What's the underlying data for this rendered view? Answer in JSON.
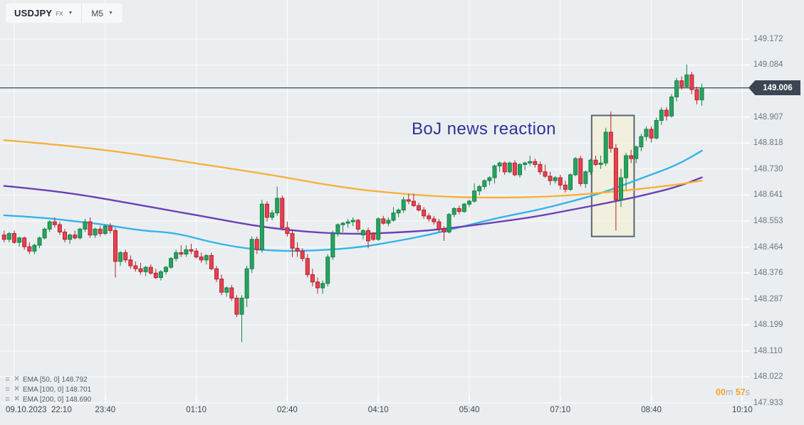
{
  "toolbar": {
    "symbol": "USDJPY",
    "market": "FX",
    "timeframe": "M5"
  },
  "annotation": {
    "text": "BoJ news reaction",
    "color": "#2e3695"
  },
  "indicators": [
    {
      "name": "EMA",
      "params": "[50, 0]",
      "value": "148.792",
      "color": "#35b3ea",
      "settings_icon": "settings-icon",
      "remove_icon": "close-icon"
    },
    {
      "name": "EMA",
      "params": "[100, 0]",
      "value": "148.701",
      "color": "#6b40b8",
      "settings_icon": "settings-icon",
      "remove_icon": "close-icon"
    },
    {
      "name": "EMA",
      "params": "[200, 0]",
      "value": "148.690",
      "color": "#f7b13c",
      "settings_icon": "settings-icon",
      "remove_icon": "close-icon"
    }
  ],
  "countdown": {
    "minutes": "00",
    "unit_m": "m",
    "seconds": "57",
    "unit_s": "s"
  },
  "price_axis": {
    "current_price": "149.006",
    "labels": [
      "149.172",
      "149.084",
      "148.907",
      "148.818",
      "148.730",
      "148.641",
      "148.553",
      "148.464",
      "148.376",
      "148.287",
      "148.199",
      "148.110",
      "148.022",
      "147.933"
    ]
  },
  "time_axis": {
    "ticks": [
      {
        "label": "09.10.2023  22:10",
        "index": 2,
        "anchor": "left"
      },
      {
        "label": "23:40",
        "index": 20
      },
      {
        "label": "01:10",
        "index": 38
      },
      {
        "label": "02:40",
        "index": 56
      },
      {
        "label": "04:10",
        "index": 74
      },
      {
        "label": "05:40",
        "index": 92
      },
      {
        "label": "07:10",
        "index": 110
      },
      {
        "label": "08:40",
        "index": 128
      },
      {
        "label": "10:10",
        "index": 146
      }
    ]
  },
  "chart_data": {
    "type": "candlestick",
    "title": "USDJPY M5",
    "symbol": "USDJPY",
    "timeframe": "M5",
    "interval_minutes": 5,
    "first_candle_time": "09.10.2023 22:00",
    "ylim": [
      147.933,
      149.172
    ],
    "y_tick_step": 0.0885,
    "grid": true,
    "current_price": 149.006,
    "colors": {
      "up_fill": "#27a45f",
      "up_stroke": "#15804a",
      "down_fill": "#ed3f4f",
      "down_stroke": "#ab2531",
      "background": "#ebeef0",
      "gridline": "#ffffff",
      "price_line": "#3c4653",
      "box_fill": "rgba(245,240,205,0.55)",
      "box_stroke": "#5b6673"
    },
    "candles": [
      [
        148.505,
        148.52,
        148.48,
        148.49
      ],
      [
        148.49,
        148.515,
        148.48,
        148.51
      ],
      [
        148.51,
        148.52,
        148.475,
        148.48
      ],
      [
        148.48,
        148.5,
        148.465,
        148.495
      ],
      [
        148.495,
        148.5,
        148.455,
        148.465
      ],
      [
        148.465,
        148.48,
        148.44,
        148.45
      ],
      [
        148.45,
        148.475,
        148.44,
        148.47
      ],
      [
        148.47,
        148.5,
        148.46,
        148.495
      ],
      [
        148.495,
        148.53,
        148.49,
        148.525
      ],
      [
        148.525,
        148.555,
        148.515,
        148.55
      ],
      [
        148.55,
        148.565,
        148.53,
        148.54
      ],
      [
        148.54,
        148.55,
        148.505,
        148.515
      ],
      [
        148.515,
        148.525,
        148.48,
        148.49
      ],
      [
        148.49,
        148.51,
        148.475,
        148.505
      ],
      [
        148.505,
        148.52,
        148.49,
        148.495
      ],
      [
        148.495,
        148.53,
        148.49,
        148.525
      ],
      [
        148.525,
        148.56,
        148.515,
        148.55
      ],
      [
        148.55,
        148.565,
        148.495,
        148.505
      ],
      [
        148.505,
        148.53,
        148.495,
        148.525
      ],
      [
        148.525,
        148.535,
        148.5,
        148.51
      ],
      [
        148.51,
        148.54,
        148.505,
        148.535
      ],
      [
        148.535,
        148.545,
        148.51,
        148.52
      ],
      [
        148.52,
        148.53,
        148.36,
        148.415
      ],
      [
        148.415,
        148.45,
        148.4,
        148.445
      ],
      [
        148.445,
        148.455,
        148.41,
        148.42
      ],
      [
        148.42,
        148.435,
        148.39,
        148.4
      ],
      [
        148.4,
        148.415,
        148.38,
        148.39
      ],
      [
        148.39,
        148.41,
        148.37,
        148.38
      ],
      [
        148.38,
        148.4,
        148.365,
        148.395
      ],
      [
        148.395,
        148.405,
        148.37,
        148.375
      ],
      [
        148.375,
        148.39,
        148.355,
        148.36
      ],
      [
        148.36,
        148.385,
        148.35,
        148.38
      ],
      [
        148.38,
        148.4,
        148.37,
        148.395
      ],
      [
        148.395,
        148.43,
        148.39,
        148.425
      ],
      [
        148.425,
        148.455,
        148.415,
        148.445
      ],
      [
        148.445,
        148.47,
        148.43,
        148.44
      ],
      [
        148.44,
        148.47,
        148.43,
        148.455
      ],
      [
        148.455,
        148.475,
        148.44,
        148.45
      ],
      [
        148.45,
        148.46,
        148.425,
        148.43
      ],
      [
        148.43,
        148.445,
        148.41,
        148.42
      ],
      [
        148.42,
        148.44,
        148.405,
        148.435
      ],
      [
        148.435,
        148.445,
        148.385,
        148.39
      ],
      [
        148.39,
        148.4,
        148.345,
        148.355
      ],
      [
        148.355,
        148.37,
        148.3,
        148.31
      ],
      [
        148.31,
        148.33,
        148.295,
        148.325
      ],
      [
        148.325,
        148.335,
        148.28,
        148.29
      ],
      [
        148.29,
        148.3,
        148.225,
        148.235
      ],
      [
        148.235,
        148.3,
        148.14,
        148.29
      ],
      [
        148.29,
        148.4,
        148.26,
        148.39
      ],
      [
        148.39,
        148.5,
        148.375,
        148.49
      ],
      [
        148.49,
        148.5,
        148.44,
        148.455
      ],
      [
        148.455,
        148.625,
        148.445,
        148.61
      ],
      [
        148.61,
        148.62,
        148.55,
        148.565
      ],
      [
        148.565,
        148.59,
        148.555,
        148.58
      ],
      [
        148.58,
        148.67,
        148.57,
        148.63
      ],
      [
        148.63,
        148.64,
        148.52,
        148.53
      ],
      [
        148.53,
        148.55,
        148.5,
        148.51
      ],
      [
        148.51,
        148.52,
        148.43,
        148.46
      ],
      [
        148.46,
        148.48,
        148.43,
        148.45
      ],
      [
        148.45,
        148.46,
        148.415,
        148.425
      ],
      [
        148.425,
        148.44,
        148.36,
        148.37
      ],
      [
        148.37,
        148.39,
        148.33,
        148.345
      ],
      [
        148.345,
        148.36,
        148.305,
        148.325
      ],
      [
        148.325,
        148.35,
        148.305,
        148.34
      ],
      [
        148.34,
        148.44,
        148.33,
        148.43
      ],
      [
        148.43,
        148.52,
        148.42,
        148.51
      ],
      [
        148.51,
        148.545,
        148.5,
        148.54
      ],
      [
        148.54,
        148.55,
        148.515,
        148.545
      ],
      [
        148.545,
        148.56,
        148.53,
        148.55
      ],
      [
        148.55,
        148.565,
        148.535,
        148.555
      ],
      [
        148.555,
        148.56,
        148.515,
        148.525
      ],
      [
        148.505,
        148.525,
        148.49,
        148.52
      ],
      [
        148.52,
        148.53,
        148.46,
        148.485
      ],
      [
        148.51,
        148.515,
        148.485,
        148.49
      ],
      [
        148.49,
        148.565,
        148.485,
        148.56
      ],
      [
        148.56,
        148.57,
        148.54,
        148.545
      ],
      [
        148.545,
        148.565,
        148.535,
        148.555
      ],
      [
        148.555,
        148.6,
        148.55,
        148.58
      ],
      [
        148.58,
        148.595,
        148.565,
        148.59
      ],
      [
        148.59,
        148.635,
        148.58,
        148.625
      ],
      [
        148.625,
        148.645,
        148.61,
        148.62
      ],
      [
        148.62,
        148.645,
        148.6,
        148.605
      ],
      [
        148.605,
        148.615,
        148.585,
        148.59
      ],
      [
        148.59,
        148.6,
        148.56,
        148.57
      ],
      [
        148.57,
        148.58,
        148.55,
        148.56
      ],
      [
        148.56,
        148.57,
        148.54,
        148.55
      ],
      [
        148.55,
        148.56,
        148.515,
        148.525
      ],
      [
        148.525,
        148.535,
        148.485,
        148.515
      ],
      [
        148.515,
        148.58,
        148.51,
        148.575
      ],
      [
        148.575,
        148.6,
        148.565,
        148.595
      ],
      [
        148.595,
        148.605,
        148.575,
        148.585
      ],
      [
        148.585,
        148.615,
        148.58,
        148.61
      ],
      [
        148.61,
        148.625,
        148.6,
        148.62
      ],
      [
        148.62,
        148.68,
        148.615,
        148.655
      ],
      [
        148.655,
        148.675,
        148.64,
        148.67
      ],
      [
        148.67,
        148.695,
        148.66,
        148.69
      ],
      [
        148.69,
        148.705,
        148.675,
        148.7
      ],
      [
        148.7,
        148.745,
        148.68,
        148.74
      ],
      [
        148.74,
        148.755,
        148.72,
        148.75
      ],
      [
        148.75,
        148.755,
        148.71,
        148.72
      ],
      [
        148.72,
        148.755,
        148.715,
        148.75
      ],
      [
        148.75,
        148.76,
        148.705,
        148.71
      ],
      [
        148.71,
        148.75,
        148.7,
        148.745
      ],
      [
        148.745,
        148.755,
        148.725,
        148.75
      ],
      [
        148.75,
        148.775,
        148.74,
        148.755
      ],
      [
        148.755,
        148.765,
        148.735,
        148.745
      ],
      [
        148.745,
        148.755,
        148.71,
        148.72
      ],
      [
        148.72,
        148.745,
        148.7,
        148.705
      ],
      [
        148.705,
        148.72,
        148.675,
        148.69
      ],
      [
        148.69,
        148.705,
        148.68,
        148.7
      ],
      [
        148.7,
        148.71,
        148.66,
        148.675
      ],
      [
        148.675,
        148.69,
        148.65,
        148.66
      ],
      [
        148.66,
        148.715,
        148.655,
        148.71
      ],
      [
        148.71,
        148.77,
        148.705,
        148.765
      ],
      [
        148.765,
        148.775,
        148.67,
        148.68
      ],
      [
        148.68,
        148.725,
        148.665,
        148.72
      ],
      [
        148.72,
        148.765,
        148.71,
        148.76
      ],
      [
        148.76,
        148.775,
        148.74,
        148.745
      ],
      [
        148.745,
        148.775,
        148.73,
        148.75
      ],
      [
        148.75,
        148.87,
        148.74,
        148.855
      ],
      [
        148.855,
        148.925,
        148.785,
        148.8
      ],
      [
        148.8,
        148.815,
        148.52,
        148.625
      ],
      [
        148.625,
        148.73,
        148.6,
        148.7
      ],
      [
        148.7,
        148.785,
        148.66,
        148.775
      ],
      [
        148.775,
        148.795,
        148.75,
        148.765
      ],
      [
        148.765,
        148.81,
        148.75,
        148.805
      ],
      [
        148.805,
        148.85,
        148.79,
        148.84
      ],
      [
        148.84,
        148.875,
        148.825,
        148.865
      ],
      [
        148.865,
        148.875,
        148.82,
        148.835
      ],
      [
        148.835,
        148.905,
        148.83,
        148.895
      ],
      [
        148.895,
        148.94,
        148.88,
        148.93
      ],
      [
        148.93,
        148.94,
        148.895,
        148.91
      ],
      [
        148.91,
        148.985,
        148.905,
        148.975
      ],
      [
        148.975,
        149.04,
        148.96,
        149.03
      ],
      [
        149.03,
        149.045,
        149.0,
        149.01
      ],
      [
        149.01,
        149.085,
        149.005,
        149.05
      ],
      [
        149.05,
        149.06,
        148.985,
        149.0
      ],
      [
        149.0,
        149.01,
        148.95,
        148.965
      ],
      [
        148.965,
        149.02,
        148.945,
        149.006
      ]
    ],
    "emas": [
      {
        "period": 50,
        "color": "#35b3ea",
        "final_value": 148.792,
        "points": [
          [
            0,
            148.572
          ],
          [
            7,
            148.565
          ],
          [
            14,
            148.552
          ],
          [
            20,
            148.54
          ],
          [
            27,
            148.52
          ],
          [
            34,
            148.512
          ],
          [
            41,
            148.48
          ],
          [
            48,
            148.458
          ],
          [
            55,
            148.45
          ],
          [
            62,
            148.452
          ],
          [
            70,
            148.462
          ],
          [
            77,
            148.482
          ],
          [
            84,
            148.505
          ],
          [
            91,
            148.535
          ],
          [
            98,
            148.565
          ],
          [
            105,
            148.588
          ],
          [
            112,
            148.618
          ],
          [
            119,
            148.652
          ],
          [
            126,
            148.698
          ],
          [
            133,
            148.742
          ],
          [
            138,
            148.792
          ]
        ]
      },
      {
        "period": 100,
        "color": "#6b40b8",
        "final_value": 148.701,
        "points": [
          [
            0,
            148.672
          ],
          [
            7,
            148.66
          ],
          [
            14,
            148.645
          ],
          [
            21,
            148.625
          ],
          [
            28,
            148.603
          ],
          [
            35,
            148.582
          ],
          [
            42,
            148.56
          ],
          [
            49,
            148.538
          ],
          [
            56,
            148.522
          ],
          [
            63,
            148.512
          ],
          [
            70,
            148.508
          ],
          [
            77,
            148.513
          ],
          [
            84,
            148.52
          ],
          [
            91,
            148.534
          ],
          [
            98,
            148.55
          ],
          [
            105,
            148.567
          ],
          [
            112,
            148.59
          ],
          [
            119,
            148.613
          ],
          [
            126,
            148.638
          ],
          [
            133,
            148.668
          ],
          [
            138,
            148.701
          ]
        ]
      },
      {
        "period": 200,
        "color": "#f7b13c",
        "final_value": 148.69,
        "points": [
          [
            0,
            148.828
          ],
          [
            7,
            148.818
          ],
          [
            14,
            148.806
          ],
          [
            21,
            148.792
          ],
          [
            28,
            148.775
          ],
          [
            35,
            148.757
          ],
          [
            42,
            148.738
          ],
          [
            49,
            148.72
          ],
          [
            56,
            148.7
          ],
          [
            63,
            148.678
          ],
          [
            70,
            148.66
          ],
          [
            77,
            148.648
          ],
          [
            84,
            148.638
          ],
          [
            91,
            148.633
          ],
          [
            98,
            148.632
          ],
          [
            105,
            148.634
          ],
          [
            112,
            148.64
          ],
          [
            119,
            148.65
          ],
          [
            126,
            148.662
          ],
          [
            133,
            148.676
          ],
          [
            138,
            148.69
          ]
        ]
      }
    ],
    "highlight_box": {
      "from_index": 116.2,
      "to_index": 124.6,
      "price_top": 148.912,
      "price_bottom": 148.5,
      "label": "BoJ news reaction"
    }
  }
}
